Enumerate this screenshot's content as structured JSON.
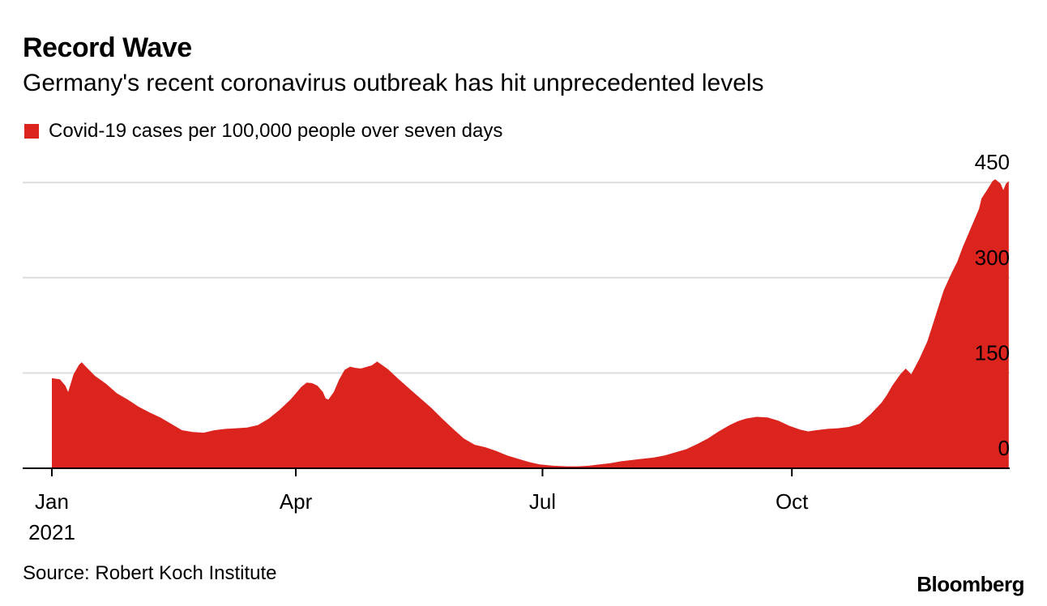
{
  "chart_data": {
    "type": "area",
    "title": "Record Wave",
    "subtitle": "Germany's recent coronavirus outbreak has hit unprecedented levels",
    "legend": [
      {
        "label": "Covid-19 cases per 100,000 people over seven days",
        "color": "#dc241f"
      }
    ],
    "x_tick_labels": [
      "Jan",
      "Apr",
      "Jul",
      "Oct"
    ],
    "x_tick_days": [
      0,
      90,
      181,
      273
    ],
    "x_year_label": "2021",
    "y_tick_labels": [
      "0",
      "150",
      "300",
      "450"
    ],
    "y_ticks": [
      0,
      150,
      300,
      450
    ],
    "ylim": [
      0,
      450
    ],
    "xlim_days": [
      0,
      362
    ],
    "series": [
      {
        "name": "Covid-19 cases per 100,000 people over seven days",
        "points": [
          [
            0,
            142
          ],
          [
            3,
            140
          ],
          [
            5,
            130
          ],
          [
            6,
            120
          ],
          [
            8,
            148
          ],
          [
            10,
            163
          ],
          [
            11,
            167
          ],
          [
            13,
            158
          ],
          [
            16,
            145
          ],
          [
            20,
            133
          ],
          [
            24,
            118
          ],
          [
            28,
            108
          ],
          [
            32,
            97
          ],
          [
            36,
            88
          ],
          [
            40,
            80
          ],
          [
            44,
            70
          ],
          [
            48,
            60
          ],
          [
            52,
            57
          ],
          [
            56,
            56
          ],
          [
            60,
            60
          ],
          [
            64,
            62
          ],
          [
            68,
            63
          ],
          [
            72,
            64
          ],
          [
            76,
            68
          ],
          [
            80,
            78
          ],
          [
            84,
            92
          ],
          [
            88,
            108
          ],
          [
            90,
            118
          ],
          [
            92,
            128
          ],
          [
            94,
            135
          ],
          [
            96,
            134
          ],
          [
            98,
            130
          ],
          [
            100,
            120
          ],
          [
            101,
            110
          ],
          [
            102,
            108
          ],
          [
            104,
            120
          ],
          [
            106,
            140
          ],
          [
            108,
            155
          ],
          [
            110,
            160
          ],
          [
            112,
            158
          ],
          [
            114,
            157
          ],
          [
            118,
            162
          ],
          [
            120,
            168
          ],
          [
            124,
            156
          ],
          [
            128,
            140
          ],
          [
            132,
            125
          ],
          [
            136,
            110
          ],
          [
            140,
            95
          ],
          [
            144,
            78
          ],
          [
            148,
            62
          ],
          [
            152,
            47
          ],
          [
            156,
            37
          ],
          [
            160,
            33
          ],
          [
            164,
            27
          ],
          [
            168,
            20
          ],
          [
            172,
            15
          ],
          [
            176,
            10
          ],
          [
            180,
            6
          ],
          [
            185,
            4
          ],
          [
            190,
            3
          ],
          [
            194,
            3
          ],
          [
            198,
            4
          ],
          [
            202,
            6
          ],
          [
            206,
            8
          ],
          [
            210,
            11
          ],
          [
            216,
            14
          ],
          [
            222,
            17
          ],
          [
            226,
            20
          ],
          [
            230,
            25
          ],
          [
            234,
            30
          ],
          [
            238,
            38
          ],
          [
            242,
            47
          ],
          [
            246,
            58
          ],
          [
            250,
            68
          ],
          [
            253,
            74
          ],
          [
            256,
            78
          ],
          [
            260,
            81
          ],
          [
            264,
            80
          ],
          [
            268,
            75
          ],
          [
            272,
            67
          ],
          [
            276,
            61
          ],
          [
            279,
            58
          ],
          [
            282,
            60
          ],
          [
            286,
            62
          ],
          [
            290,
            63
          ],
          [
            294,
            65
          ],
          [
            298,
            70
          ],
          [
            302,
            85
          ],
          [
            306,
            103
          ],
          [
            308,
            115
          ],
          [
            310,
            130
          ],
          [
            313,
            148
          ],
          [
            315,
            157
          ],
          [
            317,
            148
          ],
          [
            320,
            172
          ],
          [
            323,
            200
          ],
          [
            326,
            240
          ],
          [
            329,
            280
          ],
          [
            332,
            308
          ],
          [
            334,
            325
          ],
          [
            336,
            348
          ],
          [
            338,
            368
          ],
          [
            340,
            388
          ],
          [
            342,
            408
          ],
          [
            343,
            425
          ],
          [
            345,
            438
          ],
          [
            347,
            452
          ],
          [
            348,
            455
          ],
          [
            350,
            448
          ],
          [
            351,
            438
          ],
          [
            352,
            448
          ],
          [
            353,
            452
          ]
        ]
      }
    ]
  },
  "footer": {
    "source": "Source: Robert Koch Institute",
    "brand": "Bloomberg"
  },
  "colors": {
    "area": "#dc241f",
    "grid": "#dddddd",
    "axis": "#000000"
  }
}
